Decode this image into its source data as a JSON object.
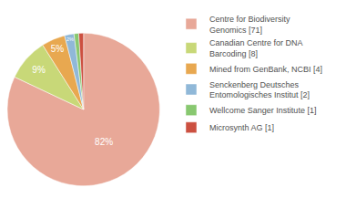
{
  "chart_data": {
    "type": "pie",
    "categories": [
      "Centre for Biodiversity\nGenomics [71]",
      "Canadian Centre for DNA\nBarcoding [8]",
      "Mined from GenBank, NCBI [4]",
      "Senckenberg Deutsches\nEntomologisches Institut [2]",
      "Wellcome Sanger Institute [1]",
      "Microsynth AG [1]"
    ],
    "values": [
      82,
      9,
      5,
      2,
      1,
      1
    ],
    "value_labels": [
      "82%",
      "9%",
      "5%",
      "2%",
      null,
      null
    ],
    "colors": [
      "#e8a898",
      "#c8d878",
      "#e8a850",
      "#90b8d8",
      "#88c870",
      "#cc5040"
    ],
    "legend": "right"
  }
}
